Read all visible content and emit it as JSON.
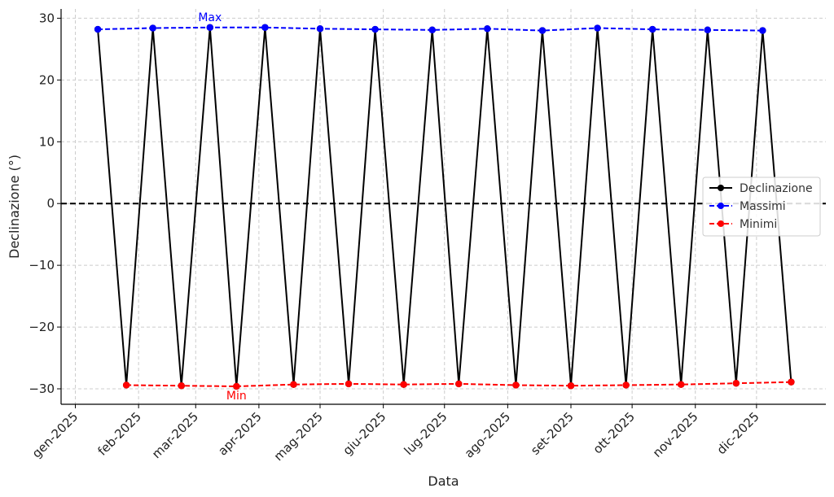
{
  "chart_data": {
    "type": "line",
    "xlabel": "Data",
    "ylabel": "Declinazione (°)",
    "ylim": [
      -32.5,
      31.5
    ],
    "xlim": [
      "2024-12-25",
      "2026-01-04"
    ],
    "yticks": [
      30,
      20,
      10,
      0,
      -10,
      -20,
      -30
    ],
    "ytick_labels": [
      "30",
      "20",
      "10",
      "0",
      "−10",
      "−20",
      "−30"
    ],
    "xticks": [
      "2025-01-01",
      "2025-02-01",
      "2025-03-01",
      "2025-04-01",
      "2025-05-01",
      "2025-06-01",
      "2025-07-01",
      "2025-08-01",
      "2025-09-01",
      "2025-10-01",
      "2025-11-01",
      "2025-12-01"
    ],
    "xtick_labels": [
      "gen-2025",
      "feb-2025",
      "mar-2025",
      "apr-2025",
      "mag-2025",
      "giu-2025",
      "lug-2025",
      "ago-2025",
      "set-2025",
      "ott-2025",
      "nov-2025",
      "dic-2025"
    ],
    "grid": true,
    "legend_position": "center-right",
    "reference_line": {
      "y": 0,
      "style": "dashed",
      "color": "#000000"
    },
    "series": [
      {
        "name": "Declinazione",
        "color": "#000000",
        "style": "solid",
        "points": [
          [
            "2025-01-12",
            28.2
          ],
          [
            "2025-01-26",
            -29.4
          ],
          [
            "2025-02-08",
            28.4
          ],
          [
            "2025-02-22",
            -29.5
          ],
          [
            "2025-03-08",
            28.5
          ],
          [
            "2025-03-21",
            -29.6
          ],
          [
            "2025-04-04",
            28.5
          ],
          [
            "2025-04-18",
            -29.3
          ],
          [
            "2025-05-01",
            28.3
          ],
          [
            "2025-05-15",
            -29.2
          ],
          [
            "2025-05-28",
            28.2
          ],
          [
            "2025-06-11",
            -29.3
          ],
          [
            "2025-06-25",
            28.1
          ],
          [
            "2025-07-08",
            -29.2
          ],
          [
            "2025-07-22",
            28.3
          ],
          [
            "2025-08-05",
            -29.4
          ],
          [
            "2025-08-18",
            28.0
          ],
          [
            "2025-09-01",
            -29.5
          ],
          [
            "2025-09-14",
            28.4
          ],
          [
            "2025-09-28",
            -29.4
          ],
          [
            "2025-10-11",
            28.2
          ],
          [
            "2025-10-25",
            -29.3
          ],
          [
            "2025-11-07",
            28.1
          ],
          [
            "2025-11-21",
            -29.1
          ],
          [
            "2025-12-04",
            28.0
          ],
          [
            "2025-12-18",
            -28.9
          ]
        ]
      },
      {
        "name": "Massimi",
        "color": "#0000ff",
        "style": "dashed",
        "points": [
          [
            "2025-01-12",
            28.2
          ],
          [
            "2025-02-08",
            28.4
          ],
          [
            "2025-03-08",
            28.5
          ],
          [
            "2025-04-04",
            28.5
          ],
          [
            "2025-05-01",
            28.3
          ],
          [
            "2025-05-28",
            28.2
          ],
          [
            "2025-06-25",
            28.1
          ],
          [
            "2025-07-22",
            28.3
          ],
          [
            "2025-08-18",
            28.0
          ],
          [
            "2025-09-14",
            28.4
          ],
          [
            "2025-10-11",
            28.2
          ],
          [
            "2025-11-07",
            28.1
          ],
          [
            "2025-12-04",
            28.0
          ]
        ]
      },
      {
        "name": "Minimi",
        "color": "#ff0000",
        "style": "dashed",
        "points": [
          [
            "2025-01-26",
            -29.4
          ],
          [
            "2025-02-22",
            -29.5
          ],
          [
            "2025-03-21",
            -29.6
          ],
          [
            "2025-04-18",
            -29.3
          ],
          [
            "2025-05-15",
            -29.2
          ],
          [
            "2025-06-11",
            -29.3
          ],
          [
            "2025-07-08",
            -29.2
          ],
          [
            "2025-08-05",
            -29.4
          ],
          [
            "2025-09-01",
            -29.5
          ],
          [
            "2025-09-28",
            -29.4
          ],
          [
            "2025-10-25",
            -29.3
          ],
          [
            "2025-11-21",
            -29.1
          ],
          [
            "2025-12-18",
            -28.9
          ]
        ]
      }
    ],
    "annotations": [
      {
        "text": "Max",
        "x": "2025-03-08",
        "y": 28.5,
        "position": "above",
        "color": "#0000ff"
      },
      {
        "text": "Min",
        "x": "2025-03-21",
        "y": -29.6,
        "position": "below",
        "color": "#ff0000"
      }
    ]
  }
}
